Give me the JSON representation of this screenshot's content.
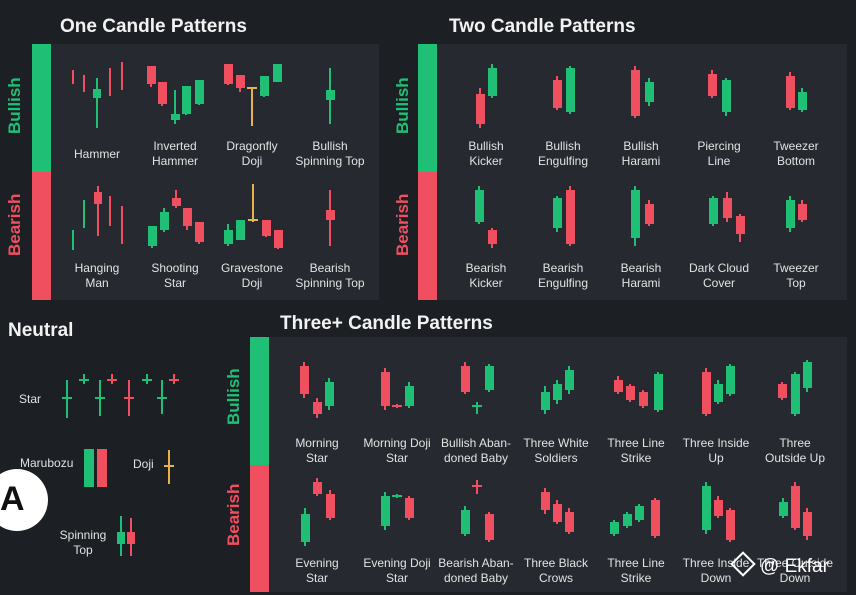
{
  "sections": {
    "one_candle": "One Candle Patterns",
    "two_candle": "Two Candle Patterns",
    "neutral": "Neutral",
    "three_candle": "Three+ Candle Patterns"
  },
  "side_labels": {
    "bullish": "Bullish",
    "bearish": "Bearish"
  },
  "one_candle": {
    "bullish": [
      {
        "l1": "Hammer",
        "l2": ""
      },
      {
        "l1": "Inverted",
        "l2": "Hammer"
      },
      {
        "l1": "Dragonfly",
        "l2": "Doji"
      },
      {
        "l1": "Bullish",
        "l2": "Spinning Top"
      }
    ],
    "bearish": [
      {
        "l1": "Hanging",
        "l2": "Man"
      },
      {
        "l1": "Shooting",
        "l2": "Star"
      },
      {
        "l1": "Gravestone",
        "l2": "Doji"
      },
      {
        "l1": "Bearish",
        "l2": "Spinning Top"
      }
    ]
  },
  "two_candle": {
    "bullish": [
      {
        "l1": "Bullish",
        "l2": "Kicker"
      },
      {
        "l1": "Bullish",
        "l2": "Engulfing"
      },
      {
        "l1": "Bullish",
        "l2": "Harami"
      },
      {
        "l1": "Piercing",
        "l2": "Line"
      },
      {
        "l1": "Tweezer",
        "l2": "Bottom"
      }
    ],
    "bearish": [
      {
        "l1": "Bearish",
        "l2": "Kicker"
      },
      {
        "l1": "Bearish",
        "l2": "Engulfing"
      },
      {
        "l1": "Bearish",
        "l2": "Harami"
      },
      {
        "l1": "Dark Cloud",
        "l2": "Cover"
      },
      {
        "l1": "Tweezer",
        "l2": "Top"
      }
    ]
  },
  "neutral": [
    {
      "l1": "Star",
      "l2": ""
    },
    {
      "l1": "Marubozu",
      "l2": ""
    },
    {
      "l1": "Doji",
      "l2": ""
    },
    {
      "l1": "Spinning",
      "l2": "Top"
    }
  ],
  "three_candle": {
    "bullish": [
      {
        "l1": "Morning",
        "l2": "Star"
      },
      {
        "l1": "Morning Doji",
        "l2": "Star"
      },
      {
        "l1": "Bullish Aban-",
        "l2": "doned Baby"
      },
      {
        "l1": "Three White",
        "l2": "Soldiers"
      },
      {
        "l1": "Three Line",
        "l2": "Strike"
      },
      {
        "l1": "Three Inside",
        "l2": "Up"
      },
      {
        "l1": "Three",
        "l2": "Outside Up"
      }
    ],
    "bearish": [
      {
        "l1": "Evening",
        "l2": "Star"
      },
      {
        "l1": "Evening Doji",
        "l2": "Star"
      },
      {
        "l1": "Bearish Aban-",
        "l2": "doned Baby"
      },
      {
        "l1": "Three Black",
        "l2": "Crows"
      },
      {
        "l1": "Three Line",
        "l2": "Strike"
      },
      {
        "l1": "Three Inside",
        "l2": "Down"
      },
      {
        "l1": "Three Outside",
        "l2": "Down"
      }
    ]
  },
  "logo_text": "A",
  "watermark": "@ Ekfar",
  "colors": {
    "bull": "#1fbf75",
    "bear": "#ef4f5f",
    "doji": "#e7b24a",
    "panel": "#262a30",
    "background": "#1c1f24"
  }
}
